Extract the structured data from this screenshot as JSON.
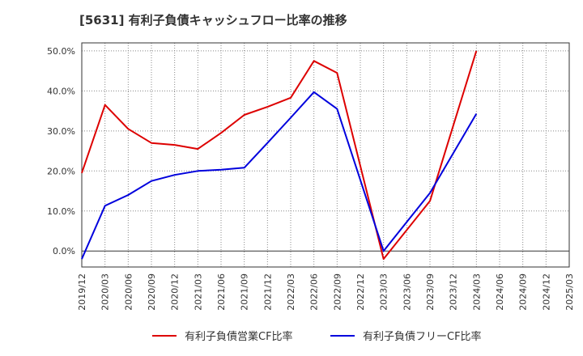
{
  "chart_data": {
    "type": "line",
    "title": "[5631]  有利子負債キャッシュフロー比率の推移",
    "xlabel": "",
    "ylabel": "",
    "ylim": [
      -4,
      52
    ],
    "y_ticks": [
      "0.0%",
      "10.0%",
      "20.0%",
      "30.0%",
      "40.0%",
      "50.0%"
    ],
    "y_tick_values": [
      0,
      10,
      20,
      30,
      40,
      50
    ],
    "x_ticks": [
      "2019/12",
      "2020/03",
      "2020/06",
      "2020/09",
      "2020/12",
      "2021/03",
      "2021/06",
      "2021/09",
      "2021/12",
      "2022/03",
      "2022/06",
      "2022/09",
      "2022/12",
      "2023/03",
      "2023/06",
      "2023/09",
      "2023/12",
      "2024/03",
      "2024/06",
      "2024/09",
      "2024/12",
      "2025/03"
    ],
    "grid": true,
    "legend_position": "bottom",
    "series": [
      {
        "name": "有利子負債営業CF比率",
        "color": "#dd0000",
        "points": [
          [
            "2019/12",
            19.5
          ],
          [
            "2020/03",
            36.5
          ],
          [
            "2020/06",
            30.5
          ],
          [
            "2020/09",
            27.0
          ],
          [
            "2020/12",
            26.5
          ],
          [
            "2021/03",
            25.5
          ],
          [
            "2021/06",
            29.5
          ],
          [
            "2021/09",
            34.0
          ],
          [
            "2021/12",
            36.0
          ],
          [
            "2022/03",
            38.3
          ],
          [
            "2022/06",
            47.5
          ],
          [
            "2022/09",
            44.5
          ],
          [
            "2023/03",
            -2.0
          ],
          [
            "2023/09",
            12.5
          ],
          [
            "2024/03",
            50.0
          ]
        ]
      },
      {
        "name": "有利子負債フリーCF比率",
        "color": "#0000dd",
        "points": [
          [
            "2019/12",
            -2.0
          ],
          [
            "2020/03",
            11.3
          ],
          [
            "2020/06",
            14.0
          ],
          [
            "2020/09",
            17.5
          ],
          [
            "2020/12",
            19.0
          ],
          [
            "2021/03",
            20.0
          ],
          [
            "2021/06",
            20.3
          ],
          [
            "2021/09",
            20.8
          ],
          [
            "2021/12",
            27.0
          ],
          [
            "2022/03",
            33.3
          ],
          [
            "2022/06",
            39.7
          ],
          [
            "2022/09",
            35.5
          ],
          [
            "2023/03",
            0.0
          ],
          [
            "2023/09",
            14.5
          ],
          [
            "2024/03",
            34.3
          ]
        ]
      }
    ]
  }
}
